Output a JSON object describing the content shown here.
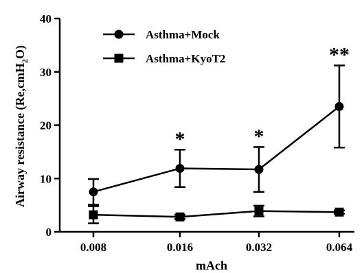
{
  "chart_data": {
    "type": "line",
    "categories": [
      "0.008",
      "0.016",
      "0.032",
      "0.064"
    ],
    "xlabel": "mAch",
    "ylabel": "Airway resistance (Re,cmH",
    "ylabel_sub": "2",
    "ylabel_end": "O)",
    "ylim": [
      0,
      40
    ],
    "yticks": [
      "0",
      "10",
      "20",
      "30",
      "40"
    ],
    "grid": false,
    "legend_position": "top-left",
    "series": [
      {
        "name": "Asthma+Mock",
        "marker": "circle",
        "values": [
          7.5,
          11.9,
          11.7,
          23.5
        ],
        "errors": [
          2.4,
          3.5,
          4.2,
          7.7
        ]
      },
      {
        "name": "Asthma+KyoT2",
        "marker": "square",
        "values": [
          3.2,
          2.8,
          3.9,
          3.7
        ],
        "errors": [
          1.6,
          0.4,
          1.0,
          0.3
        ]
      }
    ],
    "annotations": [
      "",
      "*",
      "*",
      "**"
    ]
  }
}
